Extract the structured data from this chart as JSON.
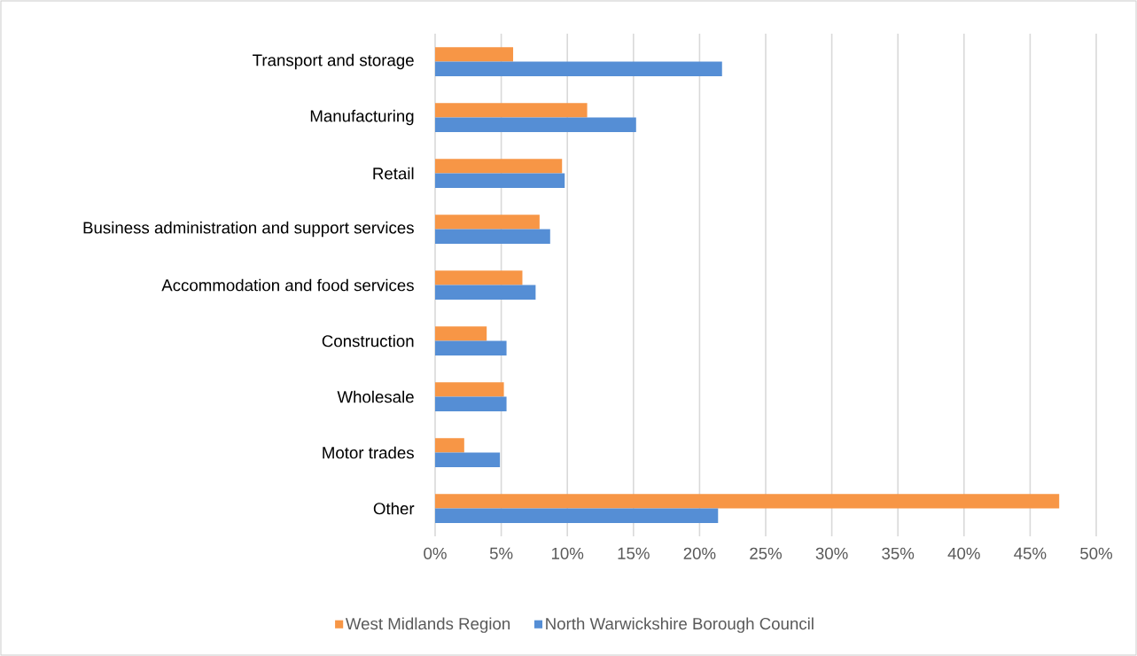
{
  "chart_data": {
    "type": "bar",
    "orientation": "horizontal",
    "categories": [
      "Transport and storage",
      "Manufacturing",
      "Retail",
      "Business administration and support services",
      "Accommodation and food services",
      "Construction",
      "Wholesale",
      "Motor trades",
      "Other"
    ],
    "series": [
      {
        "name": "West Midlands Region",
        "color": "#f79646",
        "values": [
          5.9,
          11.5,
          9.6,
          7.9,
          6.6,
          3.9,
          5.2,
          2.2,
          47.2
        ]
      },
      {
        "name": "North Warwickshire Borough Council",
        "color": "#558ed5",
        "values": [
          21.7,
          15.2,
          9.8,
          8.7,
          7.6,
          5.4,
          5.4,
          4.9,
          21.4
        ]
      }
    ],
    "xlim": [
      0,
      50
    ],
    "xticks": [
      {
        "value": 0,
        "label": "0%"
      },
      {
        "value": 5,
        "label": "5%"
      },
      {
        "value": 10,
        "label": "10%"
      },
      {
        "value": 15,
        "label": "15%"
      },
      {
        "value": 20,
        "label": "20%"
      },
      {
        "value": 25,
        "label": "25%"
      },
      {
        "value": 30,
        "label": "30%"
      },
      {
        "value": 35,
        "label": "35%"
      },
      {
        "value": 40,
        "label": "40%"
      },
      {
        "value": 45,
        "label": "45%"
      },
      {
        "value": 50,
        "label": "50%"
      }
    ],
    "grid": "x",
    "legend": "bottom"
  }
}
